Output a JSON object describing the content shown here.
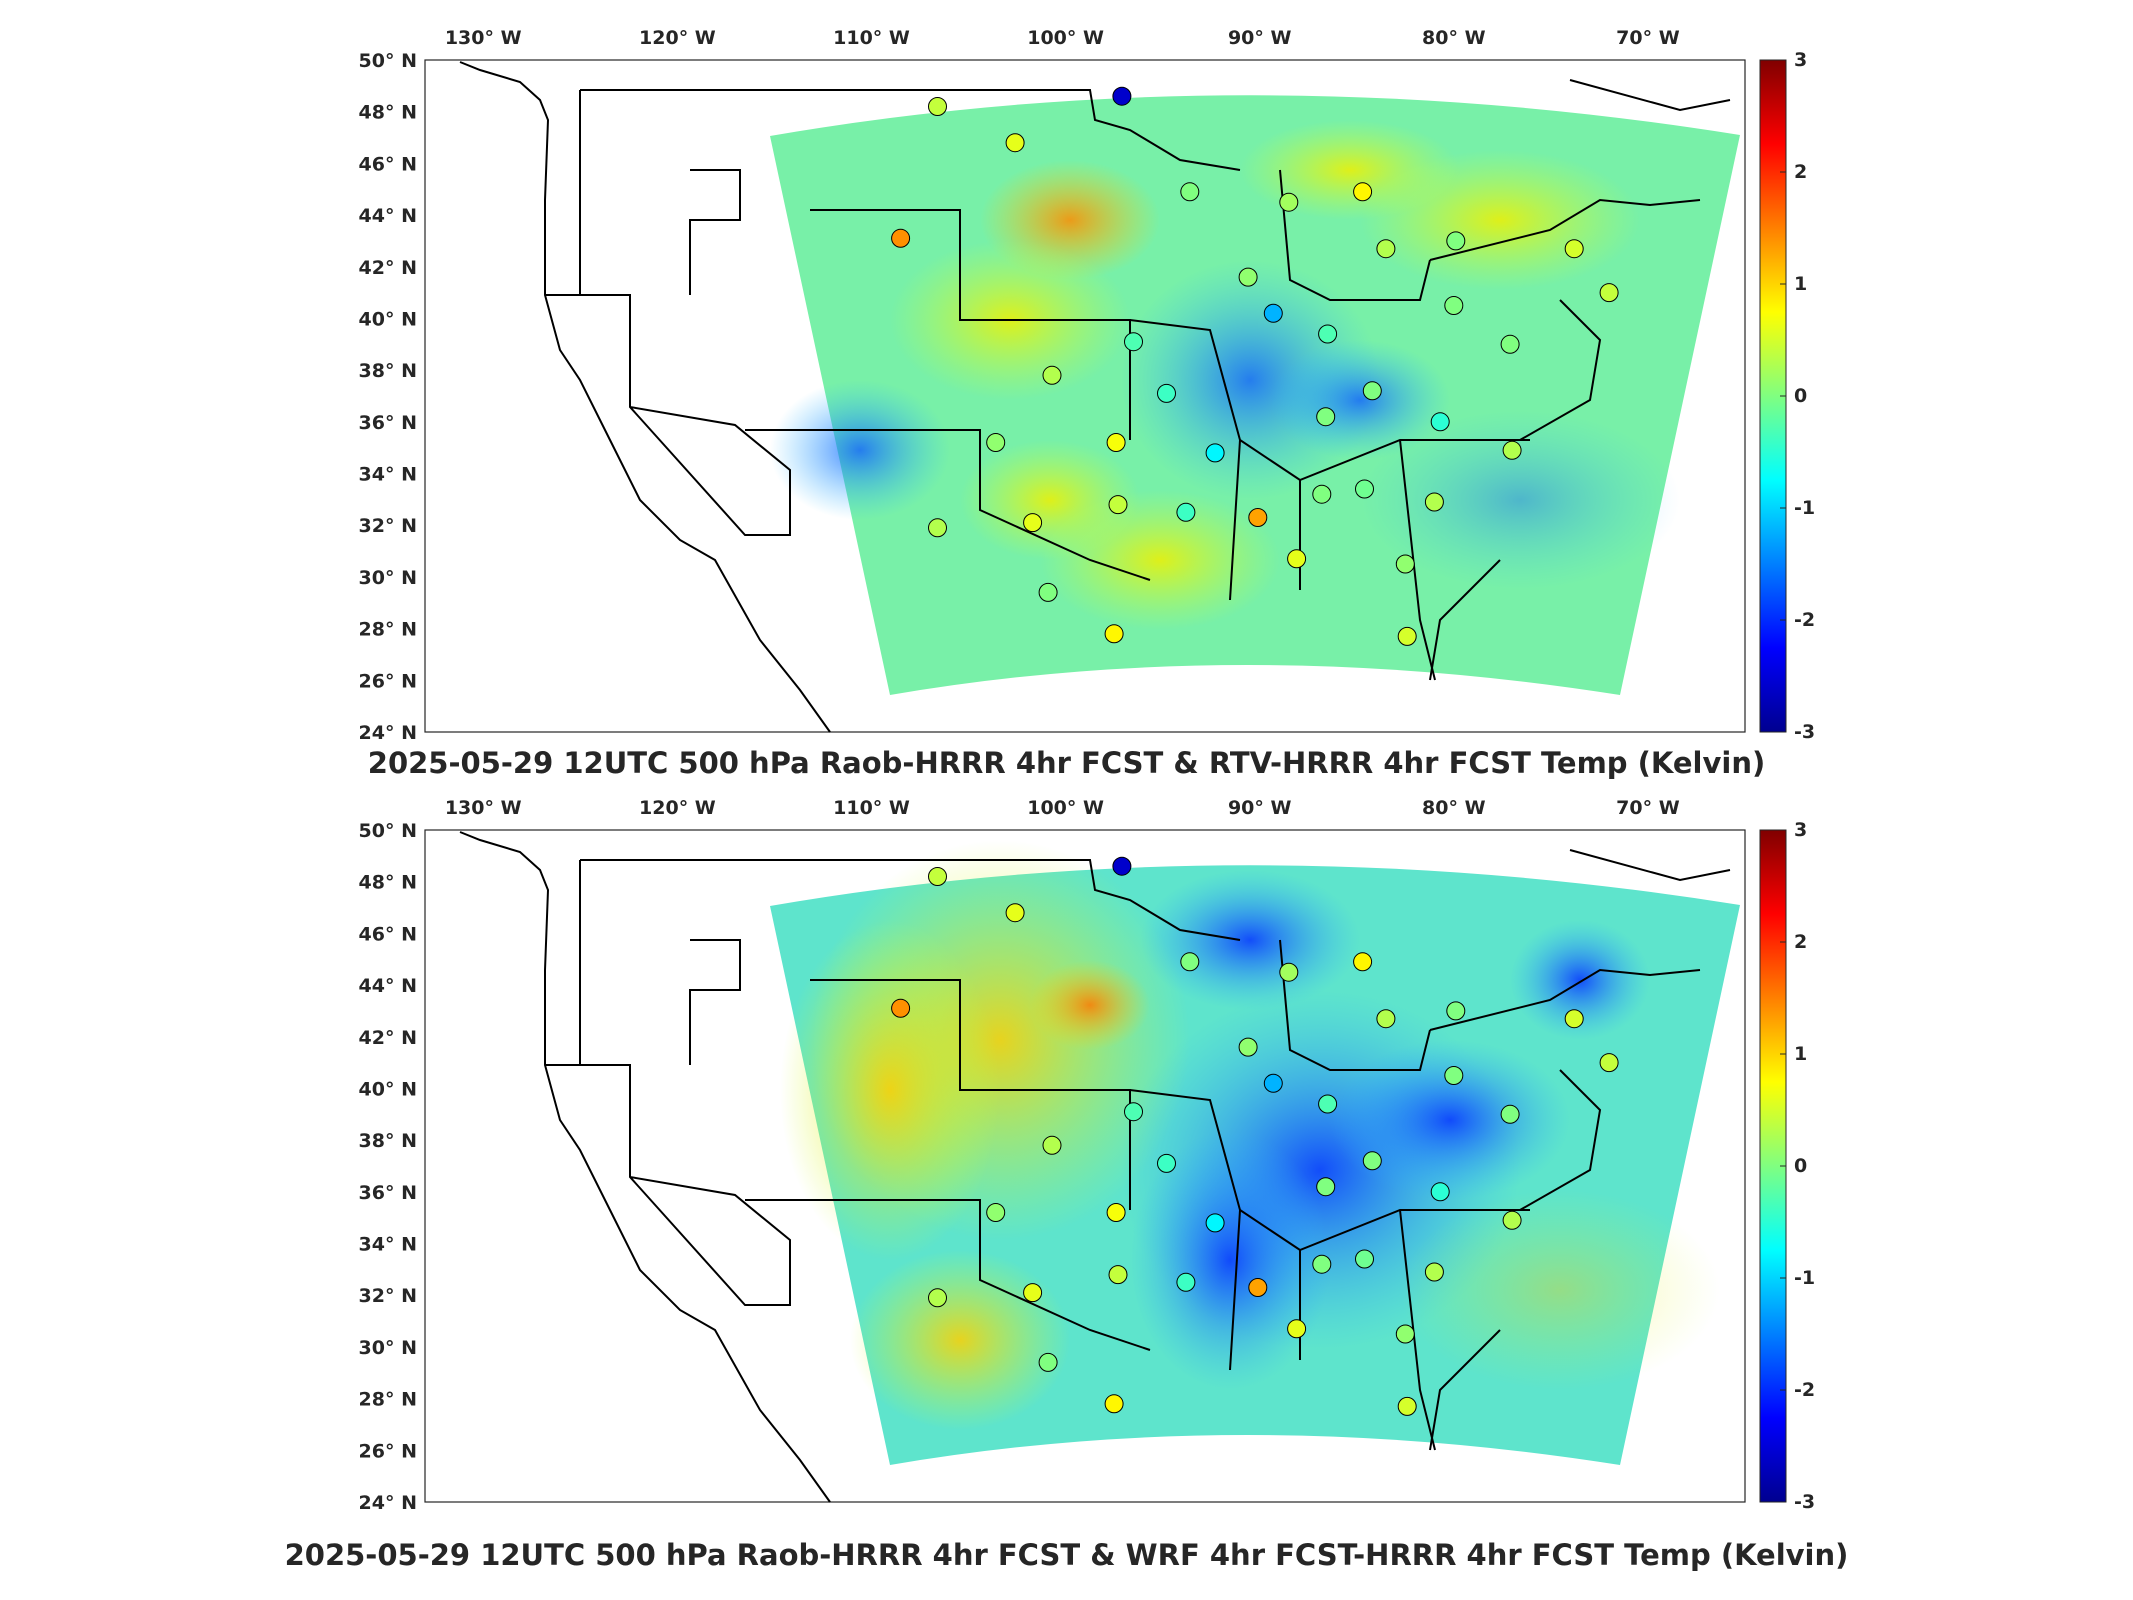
{
  "panels": [
    {
      "id": "top",
      "title": "2025-05-29 12UTC 500 hPa Raob-HRRR 4hr FCST & RTV-HRRR 4hr FCST Temp (Kelvin)",
      "colorbar_ticks": [
        "3",
        "2",
        "1",
        "0",
        "-1",
        "-2",
        "-3"
      ],
      "stations": [
        {
          "lon": -106.6,
          "lat": 48.2,
          "value": 0.4
        },
        {
          "lon": -102.6,
          "lat": 46.8,
          "value": 0.6
        },
        {
          "lon": -97.1,
          "lat": 48.6,
          "value": -2.6
        },
        {
          "lon": -93.6,
          "lat": 44.9,
          "value": 0.0
        },
        {
          "lon": -108.5,
          "lat": 43.1,
          "value": 1.4
        },
        {
          "lon": -88.5,
          "lat": 44.5,
          "value": 0.2
        },
        {
          "lon": -84.7,
          "lat": 44.9,
          "value": 0.8
        },
        {
          "lon": -90.6,
          "lat": 41.6,
          "value": 0.1
        },
        {
          "lon": -89.3,
          "lat": 40.2,
          "value": -1.2
        },
        {
          "lon": -83.5,
          "lat": 42.7,
          "value": 0.3
        },
        {
          "lon": -79.9,
          "lat": 43.0,
          "value": 0.0
        },
        {
          "lon": -73.8,
          "lat": 42.7,
          "value": 0.5
        },
        {
          "lon": -72.0,
          "lat": 41.0,
          "value": 0.4
        },
        {
          "lon": -80.0,
          "lat": 40.5,
          "value": 0.0
        },
        {
          "lon": -77.1,
          "lat": 39.0,
          "value": 0.0
        },
        {
          "lon": -86.5,
          "lat": 39.4,
          "value": -0.3
        },
        {
          "lon": -96.5,
          "lat": 39.1,
          "value": -0.3
        },
        {
          "lon": -100.7,
          "lat": 37.8,
          "value": 0.3
        },
        {
          "lon": -94.8,
          "lat": 37.1,
          "value": -0.4
        },
        {
          "lon": -84.2,
          "lat": 37.2,
          "value": 0.0
        },
        {
          "lon": -86.6,
          "lat": 36.2,
          "value": 0.0
        },
        {
          "lon": -80.7,
          "lat": 36.0,
          "value": -0.5
        },
        {
          "lon": -103.6,
          "lat": 35.2,
          "value": 0.1
        },
        {
          "lon": -97.4,
          "lat": 35.2,
          "value": 0.7
        },
        {
          "lon": -92.3,
          "lat": 34.8,
          "value": -0.8
        },
        {
          "lon": -77.0,
          "lat": 34.9,
          "value": 0.3
        },
        {
          "lon": -101.7,
          "lat": 32.1,
          "value": 0.6
        },
        {
          "lon": -97.3,
          "lat": 32.8,
          "value": 0.4
        },
        {
          "lon": -93.8,
          "lat": 32.5,
          "value": -0.4
        },
        {
          "lon": -90.1,
          "lat": 32.3,
          "value": 1.3
        },
        {
          "lon": -86.8,
          "lat": 33.2,
          "value": 0.0
        },
        {
          "lon": -84.6,
          "lat": 33.4,
          "value": -0.1
        },
        {
          "lon": -81.0,
          "lat": 32.9,
          "value": 0.3
        },
        {
          "lon": -106.6,
          "lat": 31.9,
          "value": 0.3
        },
        {
          "lon": -100.9,
          "lat": 29.4,
          "value": 0.0
        },
        {
          "lon": -97.5,
          "lat": 27.8,
          "value": 0.8
        },
        {
          "lon": -88.1,
          "lat": 30.7,
          "value": 0.6
        },
        {
          "lon": -82.5,
          "lat": 30.5,
          "value": 0.1
        },
        {
          "lon": -82.4,
          "lat": 27.7,
          "value": 0.5
        }
      ]
    },
    {
      "id": "bottom",
      "title": "2025-05-29 12UTC 500 hPa Raob-HRRR 4hr FCST & WRF 4hr FCST-HRRR 4hr FCST Temp (Kelvin)",
      "colorbar_ticks": [
        "3",
        "2",
        "1",
        "0",
        "-1",
        "-2",
        "-3"
      ],
      "stations": [
        {
          "lon": -106.6,
          "lat": 48.2,
          "value": 0.4
        },
        {
          "lon": -102.6,
          "lat": 46.8,
          "value": 0.6
        },
        {
          "lon": -97.1,
          "lat": 48.6,
          "value": -2.6
        },
        {
          "lon": -93.6,
          "lat": 44.9,
          "value": 0.0
        },
        {
          "lon": -108.5,
          "lat": 43.1,
          "value": 1.4
        },
        {
          "lon": -88.5,
          "lat": 44.5,
          "value": 0.2
        },
        {
          "lon": -84.7,
          "lat": 44.9,
          "value": 0.8
        },
        {
          "lon": -90.6,
          "lat": 41.6,
          "value": 0.1
        },
        {
          "lon": -89.3,
          "lat": 40.2,
          "value": -1.2
        },
        {
          "lon": -83.5,
          "lat": 42.7,
          "value": 0.3
        },
        {
          "lon": -79.9,
          "lat": 43.0,
          "value": 0.0
        },
        {
          "lon": -73.8,
          "lat": 42.7,
          "value": 0.5
        },
        {
          "lon": -72.0,
          "lat": 41.0,
          "value": 0.4
        },
        {
          "lon": -80.0,
          "lat": 40.5,
          "value": 0.0
        },
        {
          "lon": -77.1,
          "lat": 39.0,
          "value": 0.0
        },
        {
          "lon": -86.5,
          "lat": 39.4,
          "value": -0.3
        },
        {
          "lon": -96.5,
          "lat": 39.1,
          "value": -0.3
        },
        {
          "lon": -100.7,
          "lat": 37.8,
          "value": 0.3
        },
        {
          "lon": -94.8,
          "lat": 37.1,
          "value": -0.4
        },
        {
          "lon": -84.2,
          "lat": 37.2,
          "value": 0.0
        },
        {
          "lon": -86.6,
          "lat": 36.2,
          "value": 0.0
        },
        {
          "lon": -80.7,
          "lat": 36.0,
          "value": -0.5
        },
        {
          "lon": -103.6,
          "lat": 35.2,
          "value": 0.1
        },
        {
          "lon": -97.4,
          "lat": 35.2,
          "value": 0.7
        },
        {
          "lon": -92.3,
          "lat": 34.8,
          "value": -0.8
        },
        {
          "lon": -77.0,
          "lat": 34.9,
          "value": 0.3
        },
        {
          "lon": -101.7,
          "lat": 32.1,
          "value": 0.6
        },
        {
          "lon": -97.3,
          "lat": 32.8,
          "value": 0.4
        },
        {
          "lon": -93.8,
          "lat": 32.5,
          "value": -0.4
        },
        {
          "lon": -90.1,
          "lat": 32.3,
          "value": 1.3
        },
        {
          "lon": -86.8,
          "lat": 33.2,
          "value": 0.0
        },
        {
          "lon": -84.6,
          "lat": 33.4,
          "value": -0.1
        },
        {
          "lon": -81.0,
          "lat": 32.9,
          "value": 0.3
        },
        {
          "lon": -106.6,
          "lat": 31.9,
          "value": 0.3
        },
        {
          "lon": -100.9,
          "lat": 29.4,
          "value": 0.0
        },
        {
          "lon": -97.5,
          "lat": 27.8,
          "value": 0.8
        },
        {
          "lon": -88.1,
          "lat": 30.7,
          "value": 0.6
        },
        {
          "lon": -82.5,
          "lat": 30.5,
          "value": 0.1
        },
        {
          "lon": -82.4,
          "lat": 27.7,
          "value": 0.5
        }
      ]
    }
  ],
  "lon_labels": [
    "130° W",
    "120° W",
    "110° W",
    "100° W",
    "90° W",
    "80° W",
    "70° W"
  ],
  "lat_labels": [
    "50° N",
    "48° N",
    "46° N",
    "44° N",
    "42° N",
    "40° N",
    "38° N",
    "36° N",
    "34° N",
    "32° N",
    "30° N",
    "28° N",
    "26° N",
    "24° N"
  ],
  "colormap": "jet",
  "color_range": [
    -3,
    3
  ]
}
